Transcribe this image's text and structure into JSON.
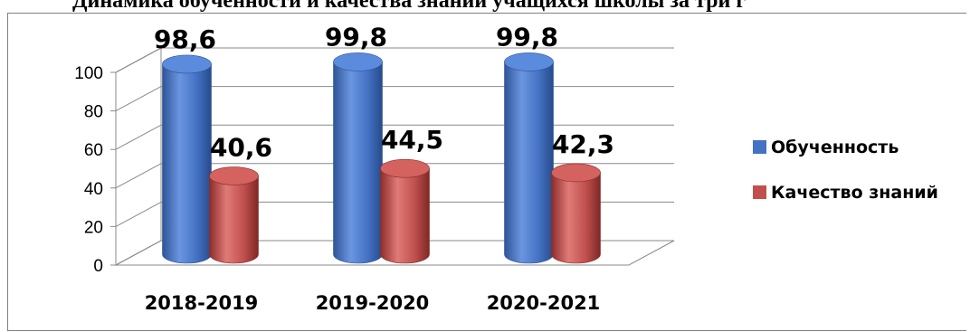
{
  "chart_data": {
    "type": "bar",
    "title": "Динамика обученности и качества знаний учащихся школы за три г",
    "categories": [
      "2018-2019",
      "2019-2020",
      "2020-2021"
    ],
    "series": [
      {
        "name": "Обученность",
        "values": [
          98.6,
          99.8,
          99.8
        ],
        "labels": [
          "98,6",
          "99,8",
          "99,8"
        ],
        "color": "#4472C4"
      },
      {
        "name": "Качество знаний",
        "values": [
          40.6,
          44.5,
          42.3
        ],
        "labels": [
          "40,6",
          "44,5",
          "42,3"
        ],
        "color": "#C0504D"
      }
    ],
    "yticks": [
      0,
      20,
      40,
      60,
      80,
      100
    ],
    "ylim": [
      0,
      100
    ],
    "grid": true,
    "legend": "right",
    "style": "3d-cylinder"
  }
}
